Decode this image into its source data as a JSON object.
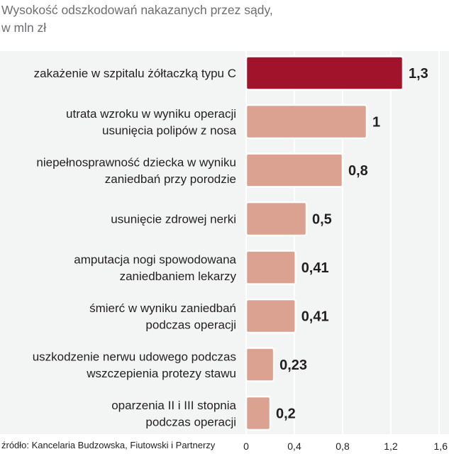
{
  "header": {
    "title_line1": "Wysokość odszkodowań nakazanych przez sądy,",
    "title_line2": "w mln zł"
  },
  "source": "źródło: Kancelaria Budzowska, Fiutowski i Partnerzy",
  "colors": {
    "highlight_bar": "#a0132b",
    "bar": "#dba291",
    "bar_outline": "#ffffff",
    "panel": "#f3f4f4",
    "gridline": "#ffffff"
  },
  "chart_data": {
    "type": "bar",
    "orientation": "horizontal",
    "title": "Wysokość odszkodowań nakazanych przez sądy, w mln zł",
    "xlim": [
      0,
      1.6
    ],
    "x_ticks": [
      "0",
      "0,4",
      "0,8",
      "1,2",
      "1,6"
    ],
    "x_tick_values": [
      0,
      0.4,
      0.8,
      1.2,
      1.6
    ],
    "grid": true,
    "categories": [
      [
        "zakażenie w szpitalu żółtaczką typu C"
      ],
      [
        "utrata wzroku w wyniku operacji",
        "usunięcia polipów z nosa"
      ],
      [
        "niepełnosprawność dziecka w wyniku",
        "zaniedbań przy porodzie"
      ],
      [
        "usunięcie zdrowej nerki"
      ],
      [
        "amputacja nogi spowodowana",
        "zaniedbaniem lekarzy"
      ],
      [
        "śmierć w wyniku zaniedbań",
        "podczas operacji"
      ],
      [
        "uszkodzenie nerwu udowego podczas",
        "wszczepienia protezy stawu"
      ],
      [
        "oparzenia II i III stopnia",
        "podczas operacji"
      ]
    ],
    "values": [
      1.3,
      1.0,
      0.8,
      0.5,
      0.41,
      0.41,
      0.23,
      0.2
    ],
    "value_labels": [
      "1,3",
      "1",
      "0,8",
      "0,5",
      "0,41",
      "0,41",
      "0,23",
      "0,2"
    ],
    "highlight_index": 0
  }
}
